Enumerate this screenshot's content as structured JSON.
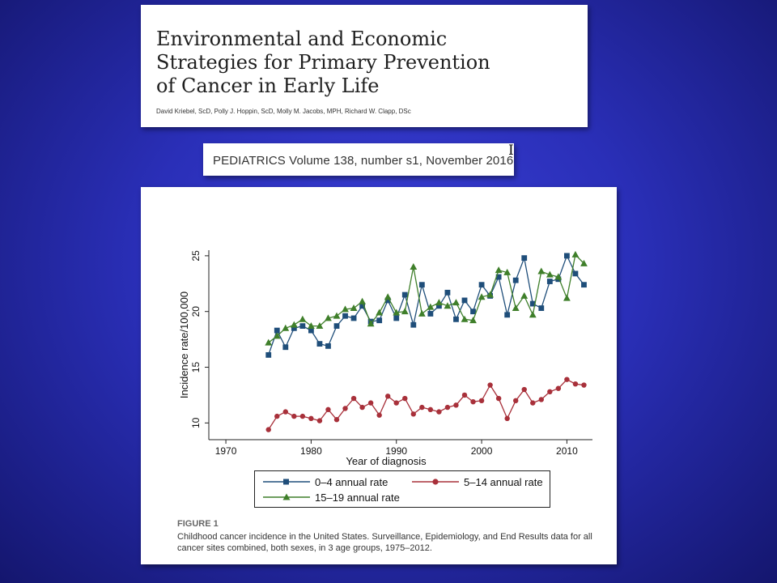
{
  "title_card": {
    "title": "Environmental and Economic\nStrategies for Primary Prevention\nof Cancer in Early Life",
    "authors": "David Kriebel, ScD, Polly J. Hoppin, ScD, Molly M. Jacobs, MPH, Richard W. Clapp, DSc"
  },
  "journal": "PEDIATRICS Volume 138, number s1, November 2016",
  "cursor_char": "I",
  "figure": {
    "label": "FIGURE 1",
    "caption": "Childhood cancer incidence in the United States. Surveillance, Epidemiology, and End Results data for all cancer sites combined, both sexes, in 3 age groups, 1975–2012."
  },
  "colors": {
    "series_0_4": "#1f4e7a",
    "series_5_14": "#a8303a",
    "series_15_19": "#3f7f2a"
  },
  "chart_data": {
    "type": "line",
    "xlabel": "Year of diagnosis",
    "ylabel": "Incidence rate/100,000",
    "xlim": [
      1968,
      2013
    ],
    "ylim": [
      8.5,
      25.5
    ],
    "x_ticks": [
      1970,
      1980,
      1990,
      2000,
      2010
    ],
    "y_ticks": [
      10,
      15,
      20,
      25
    ],
    "legend_placement": "bottom",
    "grid": false,
    "x": [
      1975,
      1976,
      1977,
      1978,
      1979,
      1980,
      1981,
      1982,
      1983,
      1984,
      1985,
      1986,
      1987,
      1988,
      1989,
      1990,
      1991,
      1992,
      1993,
      1994,
      1995,
      1996,
      1997,
      1998,
      1999,
      2000,
      2001,
      2002,
      2003,
      2004,
      2005,
      2006,
      2007,
      2008,
      2009,
      2010,
      2011,
      2012
    ],
    "series": [
      {
        "name": "0–4 annual rate",
        "marker": "square",
        "values": [
          16.1,
          18.3,
          16.8,
          18.5,
          18.7,
          18.3,
          17.1,
          16.9,
          18.7,
          19.6,
          19.4,
          20.5,
          19.1,
          19.2,
          21.0,
          19.4,
          21.5,
          18.8,
          22.4,
          19.8,
          20.5,
          21.7,
          19.3,
          21.0,
          20.0,
          22.4,
          21.4,
          23.1,
          19.7,
          22.8,
          24.8,
          20.7,
          20.3,
          22.7,
          22.9,
          25.0,
          23.4,
          22.4
        ]
      },
      {
        "name": "5–14 annual rate",
        "marker": "circle",
        "values": [
          9.4,
          10.6,
          11.0,
          10.6,
          10.6,
          10.4,
          10.2,
          11.2,
          10.3,
          11.3,
          12.2,
          11.4,
          11.8,
          10.7,
          12.4,
          11.8,
          12.2,
          10.8,
          11.4,
          11.2,
          11.0,
          11.4,
          11.6,
          12.5,
          11.9,
          12.0,
          13.4,
          12.2,
          10.4,
          12.0,
          13.0,
          11.8,
          12.1,
          12.8,
          13.1,
          13.9,
          13.5,
          13.4
        ]
      },
      {
        "name": "15–19 annual rate",
        "marker": "triangle",
        "values": [
          17.2,
          17.8,
          18.5,
          18.8,
          19.3,
          18.7,
          18.7,
          19.4,
          19.6,
          20.2,
          20.3,
          20.9,
          18.9,
          19.9,
          21.3,
          19.9,
          20.0,
          24.0,
          19.8,
          20.4,
          20.8,
          20.5,
          20.8,
          19.3,
          19.2,
          21.3,
          21.5,
          23.7,
          23.5,
          20.3,
          21.4,
          19.7,
          23.6,
          23.3,
          23.1,
          21.2,
          25.1,
          24.3
        ]
      }
    ]
  }
}
